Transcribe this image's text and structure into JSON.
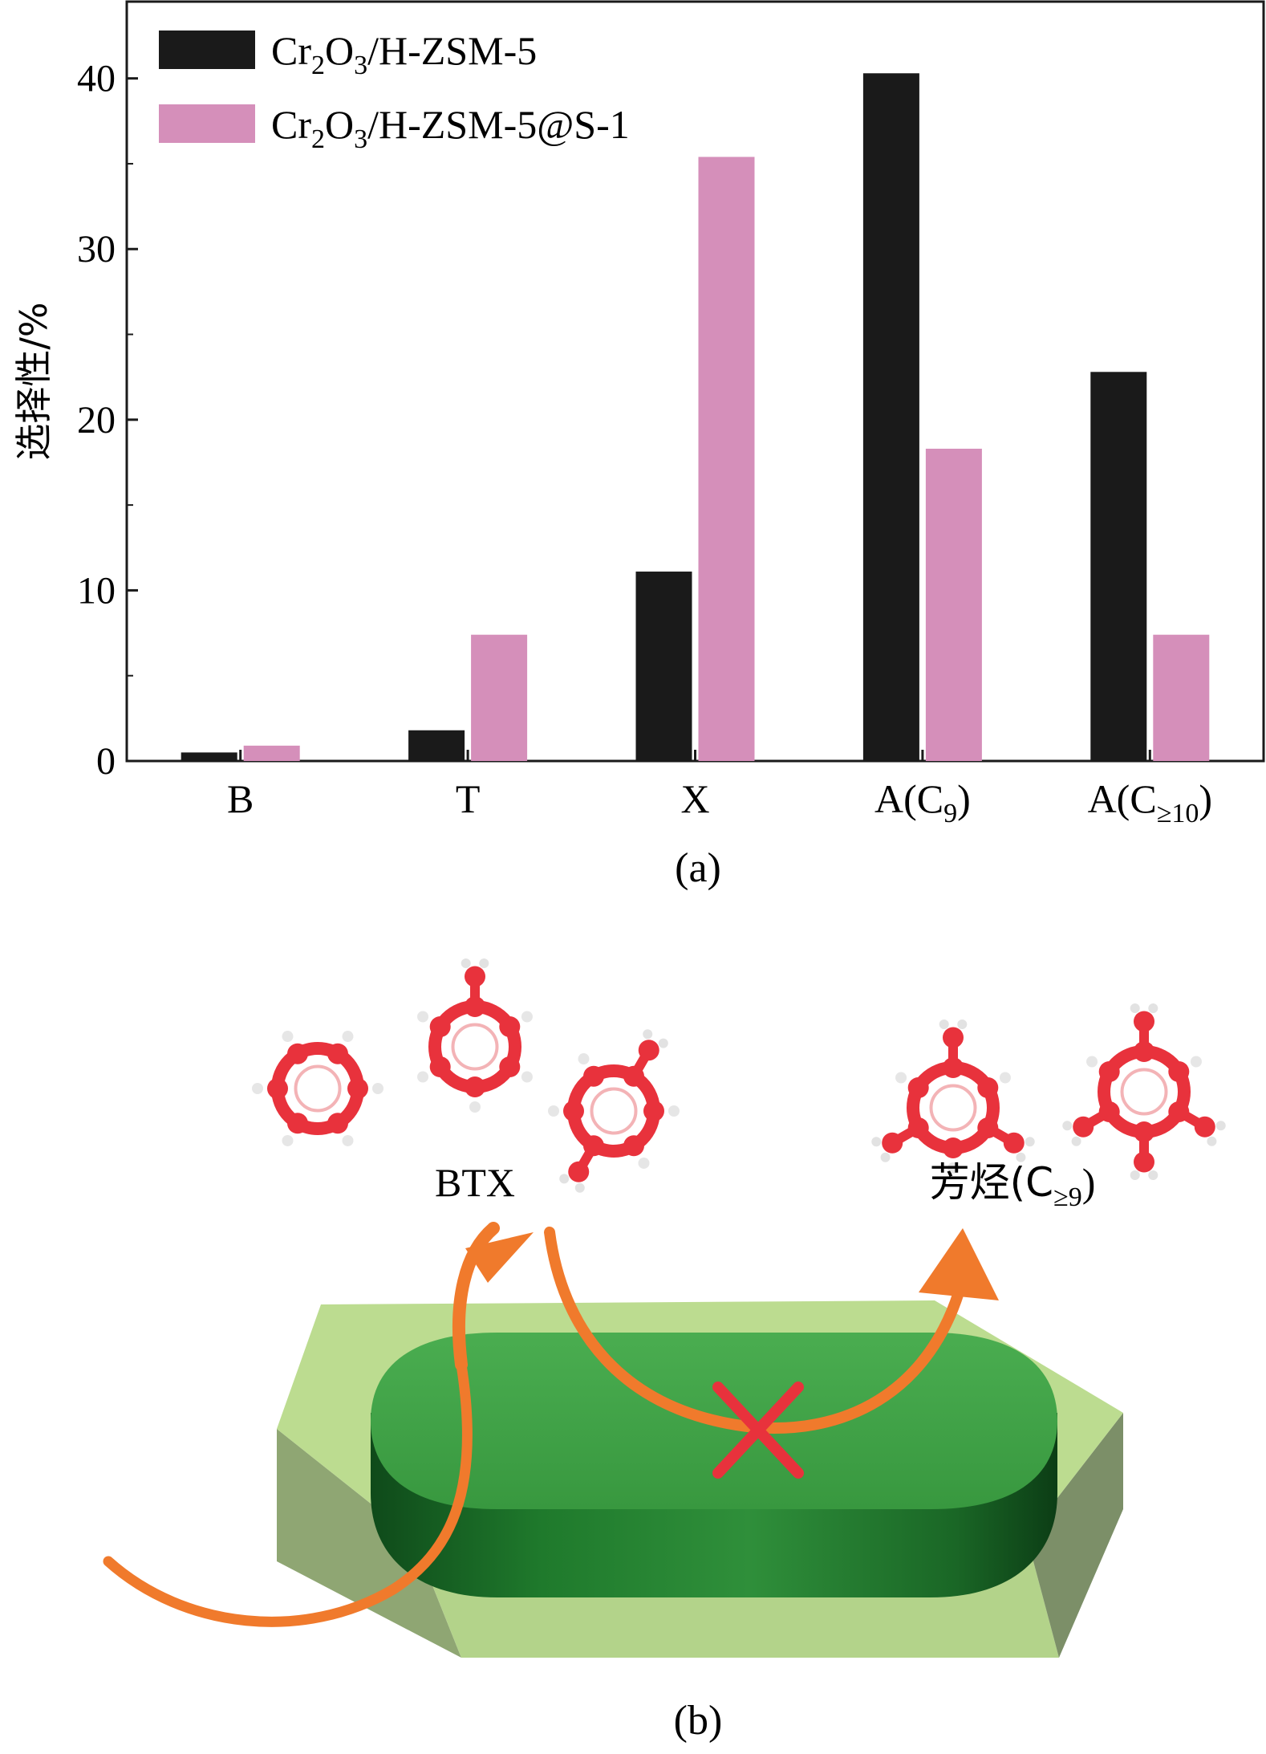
{
  "chart_data": {
    "type": "bar",
    "categories": [
      "B",
      "T",
      "X",
      "A(C9)",
      "A(C≥10)"
    ],
    "category_labels": [
      {
        "main": "B",
        "sub": ""
      },
      {
        "main": "T",
        "sub": ""
      },
      {
        "main": "X",
        "sub": ""
      },
      {
        "main": "A(C",
        "sub": "9",
        "end": ")"
      },
      {
        "main": "A(C",
        "sub": "≥10",
        "end": ")"
      }
    ],
    "series": [
      {
        "name": "Cr2O3/H-ZSM-5",
        "color": "#1a1a1a",
        "values": [
          0.5,
          1.8,
          11.1,
          40.3,
          22.8
        ]
      },
      {
        "name": "Cr2O3/H-ZSM-5@S-1",
        "color": "#d58fba",
        "values": [
          0.9,
          7.4,
          35.4,
          18.3,
          7.4
        ]
      }
    ],
    "legend_labels": [
      {
        "a": "Cr",
        "s1": "2",
        "b": "O",
        "s2": "3",
        "c": "/H-ZSM-5"
      },
      {
        "a": "Cr",
        "s1": "2",
        "b": "O",
        "s2": "3",
        "c": "/H-ZSM-5@S-1"
      }
    ],
    "ylabel": "选择性/%",
    "yticks": [
      0,
      10,
      20,
      30,
      40
    ],
    "ylim": [
      0,
      44.5
    ],
    "grid": false,
    "legend_position": "top-left"
  },
  "panel_a_label": "(a)",
  "panel_b_label": "(b)",
  "diagram": {
    "btx_label": "BTX",
    "heavy_label_main": "芳烃(C",
    "heavy_label_sub": "≥9",
    "heavy_label_end": ")",
    "arrow_color": "#f07a2c",
    "block_color": "#3a9a45",
    "shell_color": "#b9d98e",
    "molecule_color": "#e8323c"
  }
}
